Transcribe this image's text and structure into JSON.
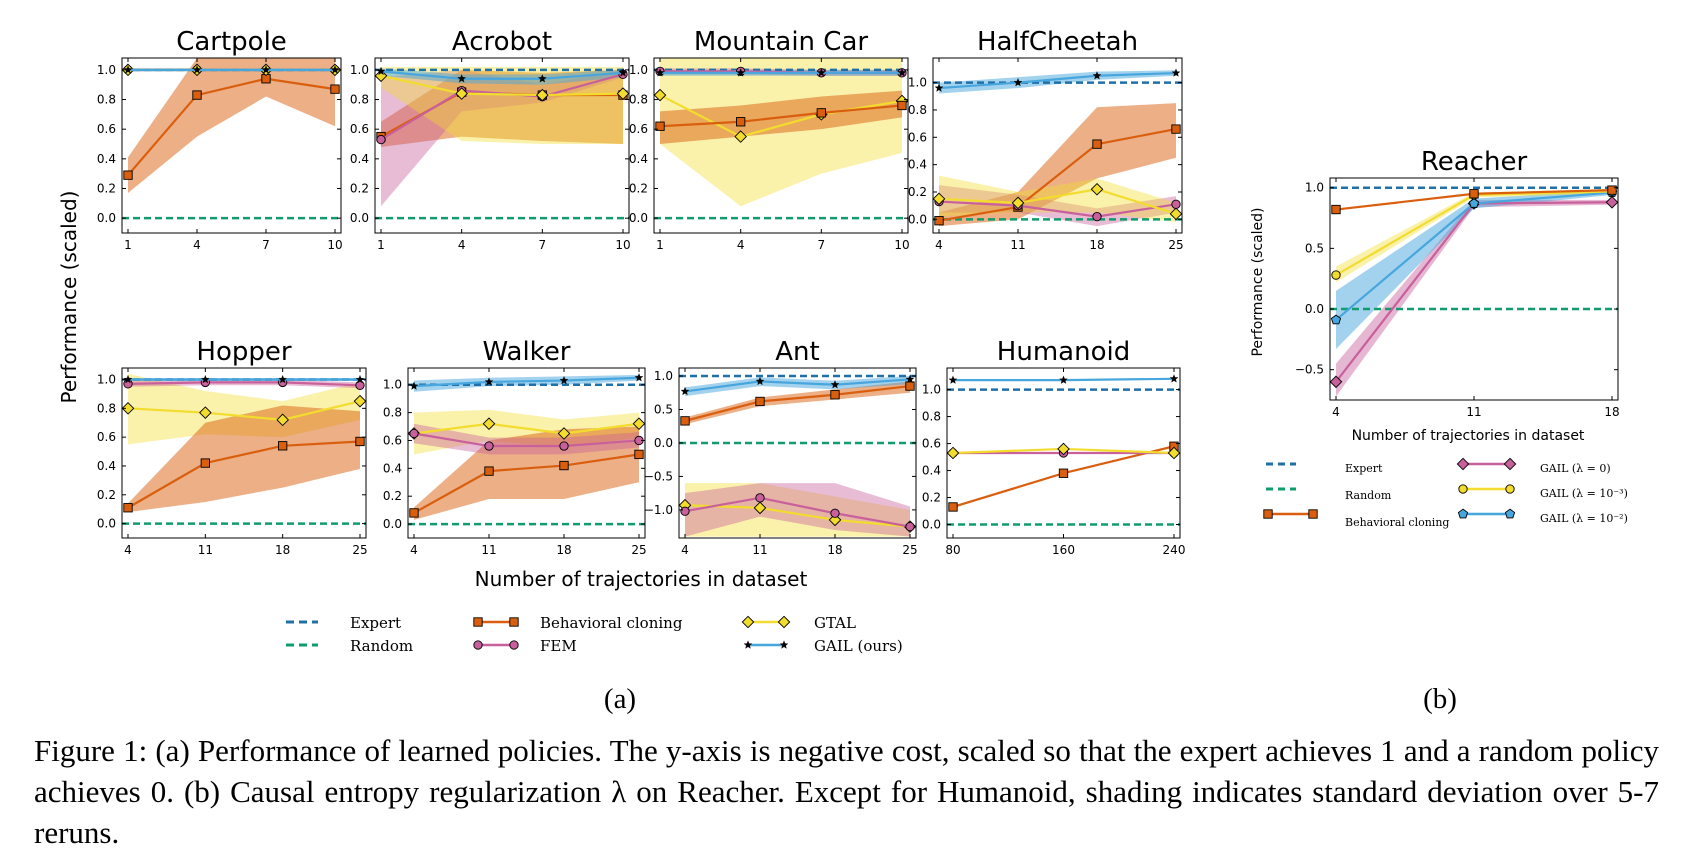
{
  "figure": {
    "panel_a_label": "(a)",
    "panel_b_label": "(b)",
    "a_xlabel": "Number of trajectories in dataset",
    "a_ylabel": "Performance (scaled)",
    "b_xlabel": "Number of trajectories in dataset",
    "b_ylabel": "Performance (scaled)",
    "caption": "Figure 1: (a) Performance of learned policies. The y-axis is negative cost, scaled so that the expert achieves 1 and a random policy achieves 0. (b) Causal entropy regularization λ on Reacher. Except for Humanoid, shading indicates standard deviation over 5-7 reruns."
  },
  "colors": {
    "expert": "#1f6fa9",
    "random": "#119c6b",
    "bc": "#d95f0e",
    "fem": "#c8609b",
    "gtal": "#f2dc2e",
    "gail": "#47a6dd"
  },
  "legend_a": {
    "expert": "Expert",
    "random": "Random",
    "bc": "Behavioral cloning",
    "fem": "FEM",
    "gtal": "GTAL",
    "gail": "GAIL (ours)"
  },
  "legend_b": {
    "expert": "Expert",
    "random": "Random",
    "bc": "Behavioral cloning",
    "l0": "GAIL (λ = 0)",
    "l3": "GAIL (λ = 10⁻³)",
    "l2": "GAIL (λ = 10⁻²)"
  },
  "chart_data": [
    {
      "type": "line",
      "title": "Cartpole",
      "x": [
        1,
        4,
        7,
        10
      ],
      "xticks": [
        1,
        4,
        7,
        10
      ],
      "yticks": [
        0.0,
        0.2,
        0.4,
        0.6,
        0.8,
        1.0
      ],
      "ylim": [
        -0.1,
        1.08
      ],
      "expert": 1.0,
      "random": 0.0,
      "series": [
        {
          "key": "bc",
          "values": [
            0.29,
            0.83,
            0.94,
            0.87
          ],
          "lower": [
            0.17,
            0.55,
            0.82,
            0.62
          ],
          "upper": [
            0.41,
            1.08,
            1.08,
            1.08
          ]
        },
        {
          "key": "fem",
          "values": [
            1.0,
            1.0,
            1.0,
            1.0
          ],
          "lower": [
            0.99,
            0.99,
            0.99,
            0.99
          ],
          "upper": [
            1.01,
            1.01,
            1.01,
            1.01
          ]
        },
        {
          "key": "gtal",
          "values": [
            1.0,
            1.0,
            1.0,
            1.0
          ],
          "lower": [
            0.99,
            0.99,
            0.99,
            0.99
          ],
          "upper": [
            1.01,
            1.01,
            1.01,
            1.01
          ]
        },
        {
          "key": "gail",
          "values": [
            1.0,
            1.0,
            1.0,
            1.0
          ],
          "lower": [
            0.99,
            0.99,
            0.99,
            0.99
          ],
          "upper": [
            1.01,
            1.01,
            1.01,
            1.01
          ]
        }
      ]
    },
    {
      "type": "line",
      "title": "Acrobot",
      "x": [
        1,
        4,
        7,
        10
      ],
      "xticks": [
        1,
        4,
        7,
        10
      ],
      "yticks": [
        0.0,
        0.2,
        0.4,
        0.6,
        0.8,
        1.0
      ],
      "ylim": [
        -0.1,
        1.08
      ],
      "expert": 1.0,
      "random": 0.0,
      "series": [
        {
          "key": "bc",
          "values": [
            0.55,
            0.85,
            0.83,
            0.83
          ],
          "lower": [
            0.48,
            0.55,
            0.52,
            0.5
          ],
          "upper": [
            0.65,
            1.0,
            0.98,
            1.0
          ]
        },
        {
          "key": "fem",
          "values": [
            0.53,
            0.86,
            0.82,
            0.97
          ],
          "lower": [
            0.08,
            0.72,
            0.78,
            0.95
          ],
          "upper": [
            0.95,
            1.0,
            0.9,
            1.0
          ]
        },
        {
          "key": "gtal",
          "values": [
            0.96,
            0.84,
            0.83,
            0.84
          ],
          "lower": [
            0.88,
            0.52,
            0.5,
            0.5
          ],
          "upper": [
            1.02,
            1.02,
            1.02,
            1.02
          ]
        },
        {
          "key": "gail",
          "values": [
            0.99,
            0.94,
            0.94,
            0.98
          ],
          "lower": [
            0.96,
            0.91,
            0.9,
            0.95
          ],
          "upper": [
            1.01,
            0.97,
            0.97,
            1.0
          ]
        }
      ]
    },
    {
      "type": "line",
      "title": "Mountain Car",
      "x": [
        1,
        4,
        7,
        10
      ],
      "xticks": [
        1,
        4,
        7,
        10
      ],
      "yticks": [
        0.0,
        0.2,
        0.4,
        0.6,
        0.8,
        1.0
      ],
      "ylim": [
        -0.1,
        1.08
      ],
      "expert": 1.0,
      "random": 0.0,
      "series": [
        {
          "key": "gtal",
          "values": [
            0.83,
            0.55,
            0.7,
            0.79
          ],
          "lower": [
            0.5,
            0.08,
            0.3,
            0.44
          ],
          "upper": [
            1.08,
            1.08,
            1.08,
            1.08
          ]
        },
        {
          "key": "bc",
          "values": [
            0.62,
            0.65,
            0.71,
            0.76
          ],
          "lower": [
            0.5,
            0.55,
            0.6,
            0.68
          ],
          "upper": [
            0.72,
            0.76,
            0.82,
            0.86
          ]
        },
        {
          "key": "fem",
          "values": [
            0.99,
            0.99,
            0.98,
            0.98
          ],
          "lower": [
            0.97,
            0.97,
            0.96,
            0.96
          ],
          "upper": [
            1.01,
            1.01,
            1.0,
            1.0
          ]
        },
        {
          "key": "gail",
          "values": [
            0.98,
            0.98,
            0.98,
            0.98
          ],
          "lower": [
            0.96,
            0.96,
            0.96,
            0.96
          ],
          "upper": [
            1.0,
            1.0,
            1.0,
            1.0
          ]
        }
      ]
    },
    {
      "type": "line",
      "title": "HalfCheetah",
      "x": [
        4,
        11,
        18,
        25
      ],
      "xticks": [
        4,
        11,
        18,
        25
      ],
      "yticks": [
        0.0,
        0.2,
        0.4,
        0.6,
        0.8,
        1.0
      ],
      "ylim": [
        -0.1,
        1.18
      ],
      "expert": 1.0,
      "random": 0.0,
      "series": [
        {
          "key": "bc",
          "values": [
            -0.01,
            0.09,
            0.55,
            0.66
          ],
          "lower": [
            -0.05,
            0.0,
            0.3,
            0.45
          ],
          "upper": [
            0.05,
            0.2,
            0.82,
            0.85
          ]
        },
        {
          "key": "fem",
          "values": [
            0.13,
            0.1,
            0.02,
            0.11
          ],
          "lower": [
            0.05,
            0.05,
            -0.05,
            0.05
          ],
          "upper": [
            0.25,
            0.18,
            0.08,
            0.17
          ]
        },
        {
          "key": "gtal",
          "values": [
            0.15,
            0.12,
            0.22,
            0.04
          ],
          "lower": [
            0.02,
            0.05,
            0.05,
            -0.02
          ],
          "upper": [
            0.32,
            0.2,
            0.3,
            0.12
          ]
        },
        {
          "key": "gail",
          "values": [
            0.96,
            1.0,
            1.05,
            1.07
          ],
          "lower": [
            0.92,
            0.96,
            1.02,
            1.05
          ],
          "upper": [
            1.0,
            1.04,
            1.08,
            1.09
          ]
        }
      ]
    },
    {
      "type": "line",
      "title": "Hopper",
      "x": [
        4,
        11,
        18,
        25
      ],
      "xticks": [
        4,
        11,
        18,
        25
      ],
      "yticks": [
        0.0,
        0.2,
        0.4,
        0.6,
        0.8,
        1.0
      ],
      "ylim": [
        -0.1,
        1.08
      ],
      "expert": 1.0,
      "random": 0.0,
      "series": [
        {
          "key": "gtal",
          "values": [
            0.8,
            0.77,
            0.72,
            0.85
          ],
          "lower": [
            0.55,
            0.62,
            0.6,
            0.72
          ],
          "upper": [
            1.04,
            0.92,
            0.85,
            0.98
          ]
        },
        {
          "key": "bc",
          "values": [
            0.11,
            0.42,
            0.54,
            0.57
          ],
          "lower": [
            0.08,
            0.15,
            0.25,
            0.38
          ],
          "upper": [
            0.14,
            0.7,
            0.82,
            0.78
          ]
        },
        {
          "key": "fem",
          "values": [
            0.97,
            0.98,
            0.98,
            0.96
          ],
          "lower": [
            0.95,
            0.96,
            0.96,
            0.94
          ],
          "upper": [
            0.99,
            1.0,
            1.0,
            0.98
          ]
        },
        {
          "key": "gail",
          "values": [
            1.0,
            1.0,
            1.0,
            1.0
          ],
          "lower": [
            0.99,
            0.99,
            0.99,
            0.99
          ],
          "upper": [
            1.01,
            1.01,
            1.01,
            1.01
          ]
        }
      ]
    },
    {
      "type": "line",
      "title": "Walker",
      "x": [
        4,
        11,
        18,
        25
      ],
      "xticks": [
        4,
        11,
        18,
        25
      ],
      "yticks": [
        0.0,
        0.2,
        0.4,
        0.6,
        0.8,
        1.0
      ],
      "ylim": [
        -0.1,
        1.12
      ],
      "expert": 1.0,
      "random": 0.0,
      "series": [
        {
          "key": "gtal",
          "values": [
            0.65,
            0.72,
            0.65,
            0.72
          ],
          "lower": [
            0.5,
            0.6,
            0.55,
            0.62
          ],
          "upper": [
            0.8,
            0.82,
            0.75,
            0.8
          ]
        },
        {
          "key": "bc",
          "values": [
            0.08,
            0.38,
            0.42,
            0.5
          ],
          "lower": [
            0.03,
            0.18,
            0.18,
            0.3
          ],
          "upper": [
            0.12,
            0.6,
            0.68,
            0.7
          ]
        },
        {
          "key": "fem",
          "values": [
            0.65,
            0.56,
            0.56,
            0.6
          ],
          "lower": [
            0.58,
            0.5,
            0.5,
            0.55
          ],
          "upper": [
            0.72,
            0.62,
            0.62,
            0.66
          ]
        },
        {
          "key": "gail",
          "values": [
            0.99,
            1.02,
            1.03,
            1.05
          ],
          "lower": [
            0.95,
            0.99,
            1.0,
            1.03
          ],
          "upper": [
            1.03,
            1.05,
            1.06,
            1.07
          ]
        }
      ]
    },
    {
      "type": "line",
      "title": "Ant",
      "x": [
        4,
        11,
        18,
        25
      ],
      "xticks": [
        4,
        11,
        18,
        25
      ],
      "yticks": [
        -1.0,
        -0.5,
        0.0,
        0.5,
        1.0
      ],
      "ylim": [
        -1.42,
        1.12
      ],
      "expert": 1.0,
      "random": 0.0,
      "series": [
        {
          "key": "gtal",
          "values": [
            -0.93,
            -0.97,
            -1.15,
            -1.25
          ],
          "lower": [
            -1.4,
            -1.4,
            -1.4,
            -1.4
          ],
          "upper": [
            -0.6,
            -0.6,
            -0.8,
            -1.0
          ]
        },
        {
          "key": "fem",
          "values": [
            -1.02,
            -0.82,
            -1.05,
            -1.25
          ],
          "lower": [
            -1.4,
            -1.1,
            -1.3,
            -1.4
          ],
          "upper": [
            -0.75,
            -0.6,
            -0.6,
            -0.95
          ]
        },
        {
          "key": "bc",
          "values": [
            0.33,
            0.62,
            0.72,
            0.85
          ],
          "lower": [
            0.28,
            0.55,
            0.65,
            0.75
          ],
          "upper": [
            0.38,
            0.68,
            0.8,
            0.92
          ]
        },
        {
          "key": "gail",
          "values": [
            0.77,
            0.92,
            0.87,
            0.95
          ],
          "lower": [
            0.7,
            0.85,
            0.8,
            0.88
          ],
          "upper": [
            0.83,
            0.98,
            0.93,
            1.0
          ]
        }
      ]
    },
    {
      "type": "line",
      "title": "Humanoid",
      "x": [
        80,
        160,
        240
      ],
      "xticks": [
        80,
        160,
        240
      ],
      "yticks": [
        0.0,
        0.2,
        0.4,
        0.6,
        0.8,
        1.0
      ],
      "ylim": [
        -0.1,
        1.16
      ],
      "expert": 1.0,
      "random": 0.0,
      "series": [
        {
          "key": "bc",
          "values": [
            0.13,
            0.38,
            0.58
          ]
        },
        {
          "key": "fem",
          "values": [
            0.53,
            0.53,
            0.53
          ]
        },
        {
          "key": "gtal",
          "values": [
            0.53,
            0.56,
            0.53
          ]
        },
        {
          "key": "gail",
          "values": [
            1.07,
            1.07,
            1.08
          ]
        }
      ]
    },
    {
      "type": "line",
      "title": "Reacher",
      "x": [
        4,
        11,
        18
      ],
      "xticks": [
        4,
        11,
        18
      ],
      "yticks": [
        -0.5,
        0.0,
        0.5,
        1.0
      ],
      "ylim": [
        -0.75,
        1.08
      ],
      "expert": 1.0,
      "random": 0.0,
      "series": [
        {
          "key": "l0",
          "values": [
            -0.6,
            0.87,
            0.88
          ],
          "lower": [
            -0.72,
            0.84,
            0.86
          ],
          "upper": [
            -0.45,
            0.9,
            0.9
          ]
        },
        {
          "key": "l2",
          "values": [
            -0.09,
            0.87,
            0.96
          ],
          "lower": [
            -0.33,
            0.83,
            0.94
          ],
          "upper": [
            0.15,
            0.91,
            0.98
          ]
        },
        {
          "key": "l3",
          "values": [
            0.28,
            0.94,
            0.97
          ],
          "lower": [
            0.22,
            0.92,
            0.95
          ],
          "upper": [
            0.35,
            0.96,
            0.99
          ]
        },
        {
          "key": "bc",
          "values": [
            0.82,
            0.95,
            0.98
          ]
        }
      ]
    }
  ]
}
